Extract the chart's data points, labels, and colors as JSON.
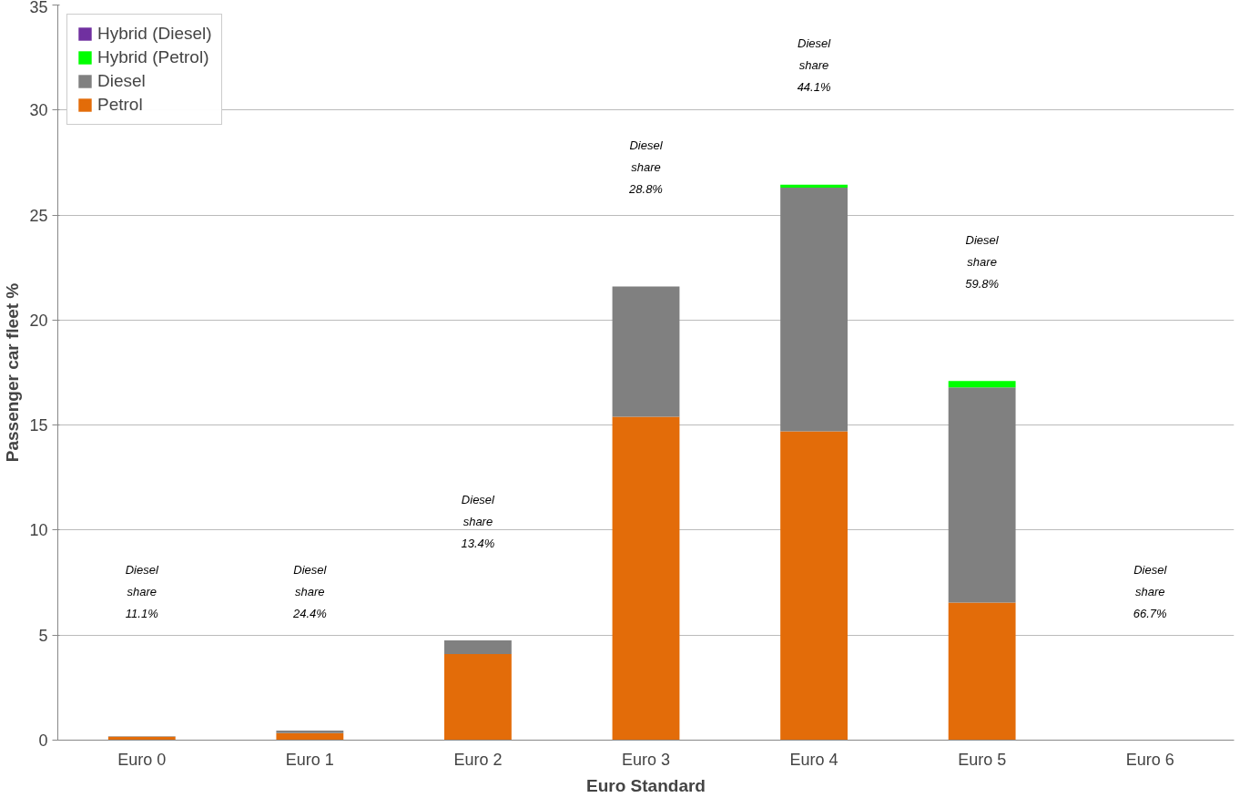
{
  "chart_data": {
    "type": "bar",
    "stacked": true,
    "xlabel": "Euro Standard",
    "ylabel": "Passenger car fleet %",
    "categories": [
      "Euro 0",
      "Euro 1",
      "Euro 2",
      "Euro 3",
      "Euro 4",
      "Euro 5",
      "Euro 6"
    ],
    "series": [
      {
        "name": "Petrol",
        "color": "#e36c09",
        "values": [
          0.16,
          0.34,
          4.1,
          15.4,
          14.7,
          6.55,
          null
        ]
      },
      {
        "name": "Diesel",
        "color": "#808080",
        "values": [
          0.02,
          0.11,
          0.65,
          6.2,
          11.6,
          10.25,
          null
        ]
      },
      {
        "name": "Hybrid (Petrol)",
        "color": "#00ff00",
        "values": [
          0,
          0,
          0,
          0,
          0.15,
          0.3,
          0
        ]
      },
      {
        "name": "Hybrid (Diesel)",
        "color": "#7030a0",
        "values": [
          0,
          0,
          0,
          0,
          0,
          0,
          0
        ]
      }
    ],
    "ylim": [
      0,
      35
    ],
    "yticks": [
      0,
      5,
      10,
      15,
      20,
      25,
      30,
      35
    ],
    "grid": "y",
    "legend": "top left",
    "annotations": [
      "Diesel\nshare\n11.1%",
      "Diesel\nshare\n24.4%",
      "Diesel\nshare\n13.4%",
      "Diesel\nshare\n28.8%",
      "Diesel\nshare\n44.1%",
      "Diesel\nshare\n59.8%",
      "Diesel\nshare\n66.7%"
    ]
  }
}
